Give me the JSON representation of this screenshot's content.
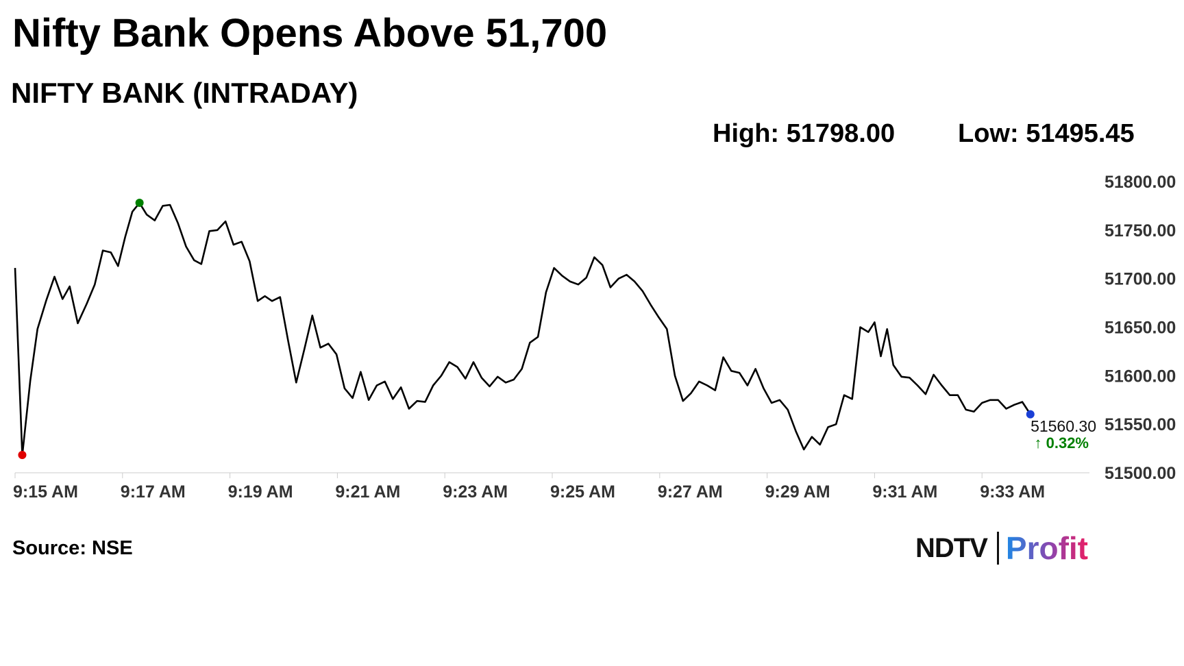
{
  "header": {
    "title": "Nifty Bank Opens Above 51,700",
    "subtitle": "NIFTY BANK (INTRADAY)",
    "high_label": "High: 51798.00",
    "low_label": "Low: 51495.45"
  },
  "footer": {
    "source": "Source: NSE",
    "logo_ndtv": "NDTV",
    "logo_profit": "Profit"
  },
  "colors": {
    "line": "#000000",
    "high_marker": "#008000",
    "low_marker": "#e00000",
    "last_marker": "#1a3fd6",
    "change_positive": "#008000",
    "axis": "#cccccc"
  },
  "chart_data": {
    "type": "line",
    "title": "NIFTY BANK (INTRADAY)",
    "xlabel": "",
    "ylabel": "",
    "x_start": "9:15 AM",
    "x_end": "9:35 AM",
    "x_ticks": [
      "9:15 AM",
      "9:17 AM",
      "9:19 AM",
      "9:21 AM",
      "9:23 AM",
      "9:25 AM",
      "9:27 AM",
      "9:29 AM",
      "9:31 AM",
      "9:33 AM"
    ],
    "y_ticks": [
      "51800.00",
      "51750.00",
      "51700.00",
      "51650.00",
      "51600.00",
      "51550.00",
      "51500.00"
    ],
    "ylim": [
      51500,
      51800
    ],
    "grid": false,
    "series": [
      {
        "points": [
          [
            "9:15:00",
            51711
          ],
          [
            "9:15:08",
            51518
          ],
          [
            "9:15:17",
            51595
          ],
          [
            "9:15:25",
            51648
          ],
          [
            "9:15:35",
            51678
          ],
          [
            "9:15:44",
            51702
          ],
          [
            "9:15:53",
            51679
          ],
          [
            "9:16:01",
            51692
          ],
          [
            "9:16:10",
            51654
          ],
          [
            "9:16:20",
            51674
          ],
          [
            "9:16:29",
            51694
          ],
          [
            "9:16:38",
            51729
          ],
          [
            "9:16:47",
            51727
          ],
          [
            "9:16:55",
            51713
          ],
          [
            "9:17:03",
            51743
          ],
          [
            "9:17:11",
            51769
          ],
          [
            "9:17:19",
            51778
          ],
          [
            "9:17:27",
            51766
          ],
          [
            "9:17:36",
            51760
          ],
          [
            "9:17:45",
            51775
          ],
          [
            "9:17:53",
            51776
          ],
          [
            "9:18:02",
            51757
          ],
          [
            "9:18:11",
            51733
          ],
          [
            "9:18:20",
            51719
          ],
          [
            "9:18:28",
            51715
          ],
          [
            "9:18:37",
            51749
          ],
          [
            "9:18:46",
            51750
          ],
          [
            "9:18:55",
            51759
          ],
          [
            "9:19:04",
            51735
          ],
          [
            "9:19:13",
            51738
          ],
          [
            "9:19:22",
            51718
          ],
          [
            "9:19:31",
            51677
          ],
          [
            "9:19:39",
            51682
          ],
          [
            "9:19:47",
            51677
          ],
          [
            "9:19:56",
            51681
          ],
          [
            "9:20:05",
            51636
          ],
          [
            "9:20:14",
            51593
          ],
          [
            "9:20:23",
            51627
          ],
          [
            "9:20:32",
            51662
          ],
          [
            "9:20:41",
            51629
          ],
          [
            "9:20:50",
            51633
          ],
          [
            "9:20:59",
            51622
          ],
          [
            "9:21:08",
            51587
          ],
          [
            "9:21:17",
            51577
          ],
          [
            "9:21:26",
            51604
          ],
          [
            "9:21:35",
            51575
          ],
          [
            "9:21:44",
            51590
          ],
          [
            "9:21:53",
            51594
          ],
          [
            "9:22:02",
            51576
          ],
          [
            "9:22:11",
            51588
          ],
          [
            "9:22:20",
            51566
          ],
          [
            "9:22:29",
            51574
          ],
          [
            "9:22:38",
            51573
          ],
          [
            "9:22:47",
            51590
          ],
          [
            "9:22:56",
            51600
          ],
          [
            "9:23:05",
            51614
          ],
          [
            "9:23:14",
            51609
          ],
          [
            "9:23:23",
            51597
          ],
          [
            "9:23:32",
            51614
          ],
          [
            "9:23:41",
            51598
          ],
          [
            "9:23:50",
            51589
          ],
          [
            "9:23:59",
            51599
          ],
          [
            "9:24:08",
            51593
          ],
          [
            "9:24:17",
            51596
          ],
          [
            "9:24:26",
            51607
          ],
          [
            "9:24:35",
            51634
          ],
          [
            "9:24:44",
            51640
          ],
          [
            "9:24:53",
            51686
          ],
          [
            "9:25:02",
            51711
          ],
          [
            "9:25:11",
            51703
          ],
          [
            "9:25:20",
            51697
          ],
          [
            "9:25:29",
            51694
          ],
          [
            "9:25:38",
            51701
          ],
          [
            "9:25:47",
            51722
          ],
          [
            "9:25:56",
            51714
          ],
          [
            "9:26:05",
            51691
          ],
          [
            "9:26:14",
            51700
          ],
          [
            "9:26:23",
            51704
          ],
          [
            "9:26:32",
            51697
          ],
          [
            "9:26:41",
            51687
          ],
          [
            "9:26:50",
            51673
          ],
          [
            "9:26:59",
            51660
          ],
          [
            "9:27:08",
            51648
          ],
          [
            "9:27:17",
            51600
          ],
          [
            "9:27:26",
            51574
          ],
          [
            "9:27:35",
            51582
          ],
          [
            "9:27:44",
            51594
          ],
          [
            "9:27:53",
            51590
          ],
          [
            "9:28:02",
            51585
          ],
          [
            "9:28:11",
            51619
          ],
          [
            "9:28:20",
            51605
          ],
          [
            "9:28:29",
            51603
          ],
          [
            "9:28:38",
            51590
          ],
          [
            "9:28:47",
            51607
          ],
          [
            "9:28:56",
            51587
          ],
          [
            "9:29:05",
            51572
          ],
          [
            "9:29:14",
            51575
          ],
          [
            "9:29:23",
            51565
          ],
          [
            "9:29:32",
            51543
          ],
          [
            "9:29:41",
            51524
          ],
          [
            "9:29:50",
            51537
          ],
          [
            "9:29:59",
            51529
          ],
          [
            "9:30:08",
            51547
          ],
          [
            "9:30:17",
            51550
          ],
          [
            "9:30:26",
            51580
          ],
          [
            "9:30:35",
            51576
          ],
          [
            "9:30:44",
            51650
          ],
          [
            "9:30:53",
            51645
          ],
          [
            "9:31:00",
            51655
          ],
          [
            "9:31:07",
            51620
          ],
          [
            "9:31:14",
            51648
          ],
          [
            "9:31:21",
            51611
          ],
          [
            "9:31:30",
            51599
          ],
          [
            "9:31:39",
            51598
          ],
          [
            "9:31:48",
            51590
          ],
          [
            "9:31:57",
            51581
          ],
          [
            "9:32:06",
            51601
          ],
          [
            "9:32:15",
            51590
          ],
          [
            "9:32:24",
            51580
          ],
          [
            "9:32:33",
            51580
          ],
          [
            "9:32:42",
            51565
          ],
          [
            "9:32:51",
            51563
          ],
          [
            "9:33:00",
            51572
          ],
          [
            "9:33:09",
            51575
          ],
          [
            "9:33:18",
            51575
          ],
          [
            "9:33:27",
            51566
          ],
          [
            "9:33:36",
            51570
          ],
          [
            "9:33:45",
            51573
          ],
          [
            "9:33:54",
            51560.3
          ]
        ]
      }
    ],
    "high": {
      "time": "9:17:19",
      "value": 51798.0
    },
    "low": {
      "time": "9:15:08",
      "value": 51495.45
    },
    "last": {
      "time": "9:33:54",
      "value": "51560.30",
      "change": "↑ 0.32%"
    }
  }
}
